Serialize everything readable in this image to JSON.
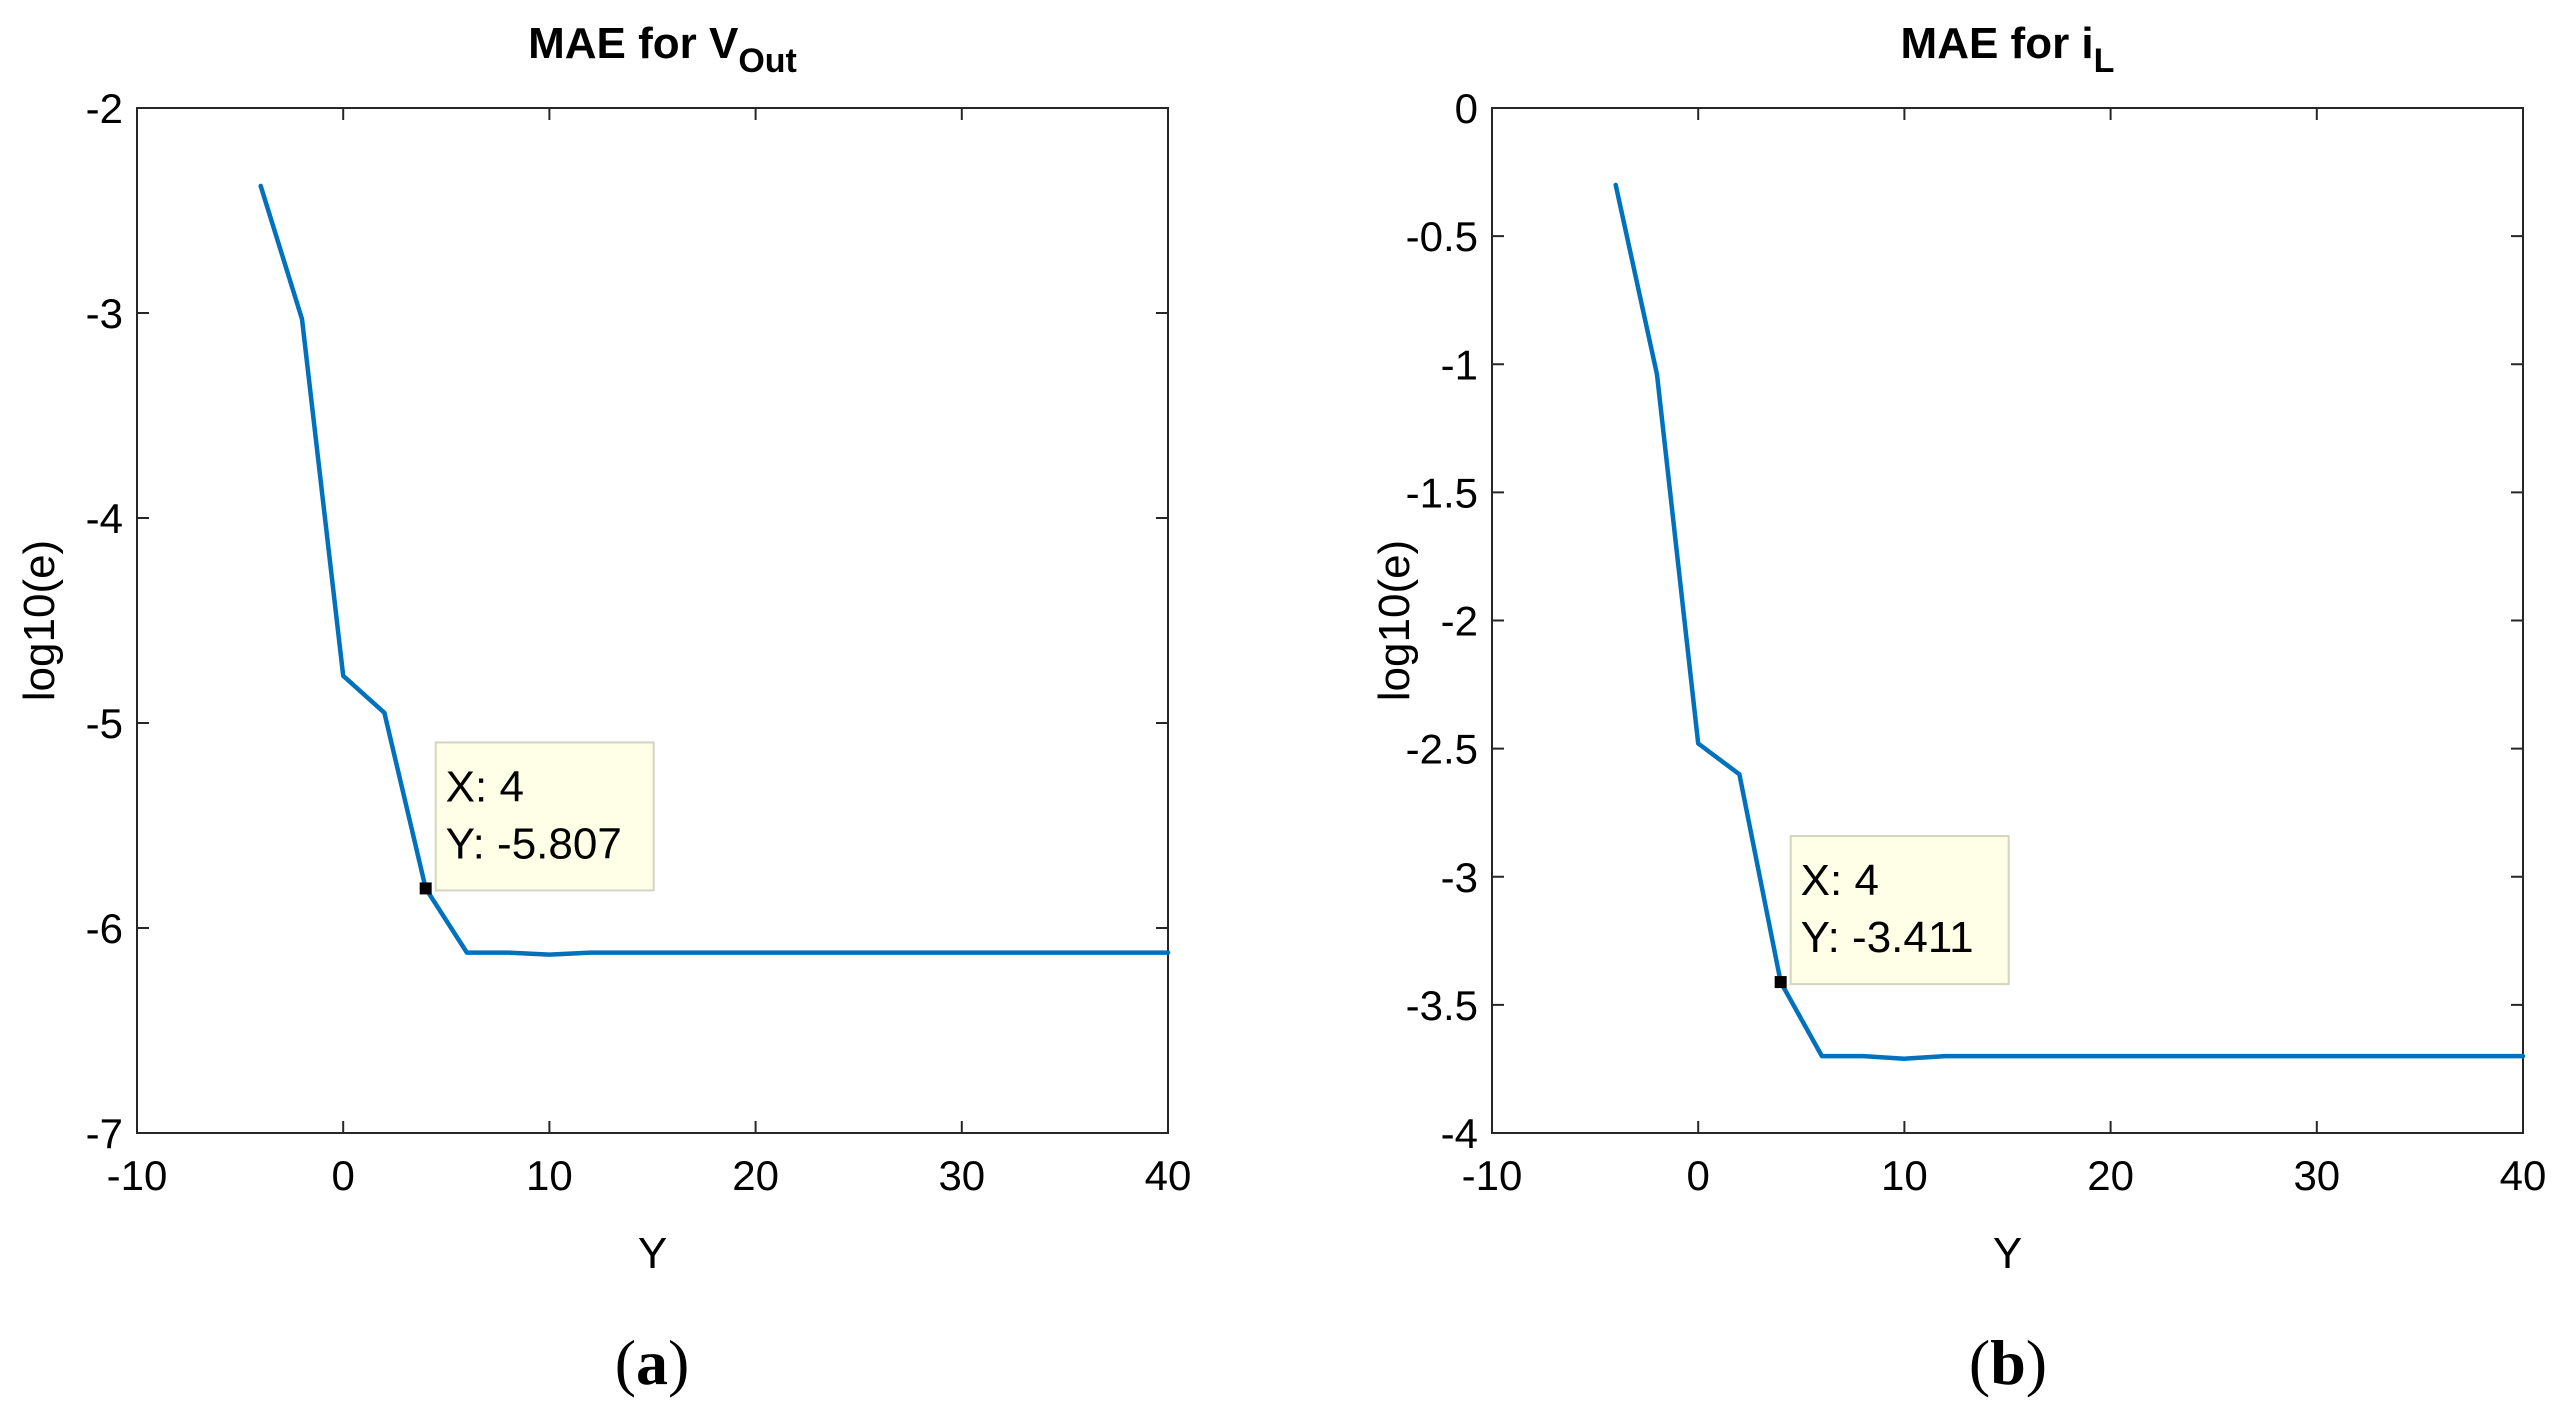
{
  "chart_data": [
    {
      "type": "line",
      "title": "MAE for V",
      "title_subscript": "Out",
      "xlabel": "Y",
      "ylabel": "log10(e)",
      "xlim": [
        -10,
        40
      ],
      "ylim": [
        -7,
        -2
      ],
      "xticks": [
        -10,
        0,
        10,
        20,
        30,
        40
      ],
      "yticks": [
        -7,
        -6,
        -5,
        -4,
        -3,
        -2
      ],
      "xtick_labels": [
        "-10",
        "0",
        "10",
        "20",
        "30",
        "40"
      ],
      "ytick_labels": [
        "-7",
        "-6",
        "-5",
        "-4",
        "-3",
        "-2"
      ],
      "series": [
        {
          "name": "MAE",
          "color": "#0072BD",
          "x": [
            -4,
            -2,
            0,
            2,
            4,
            6,
            8,
            10,
            12,
            40
          ],
          "y": [
            -2.38,
            -3.03,
            -4.77,
            -4.95,
            -5.807,
            -6.12,
            -6.12,
            -6.13,
            -6.12,
            -6.12
          ]
        }
      ],
      "datatip": {
        "x": 4,
        "y": -5.807,
        "line1": "X: 4",
        "line2": "Y: -5.807"
      },
      "panel_label": {
        "open": "(",
        "letter": "a",
        "close": ")"
      }
    },
    {
      "type": "line",
      "title": "MAE for i",
      "title_subscript": "L",
      "xlabel": "Y",
      "ylabel": "log10(e)",
      "xlim": [
        -10,
        40
      ],
      "ylim": [
        -4,
        0
      ],
      "xticks": [
        -10,
        0,
        10,
        20,
        30,
        40
      ],
      "yticks": [
        -4,
        -3.5,
        -3,
        -2.5,
        -2,
        -1.5,
        -1,
        -0.5,
        0
      ],
      "xtick_labels": [
        "-10",
        "0",
        "10",
        "20",
        "30",
        "40"
      ],
      "ytick_labels": [
        "-4",
        "-3.5",
        "-3",
        "-2.5",
        "-2",
        "-1.5",
        "-1",
        "-0.5",
        "0"
      ],
      "series": [
        {
          "name": "MAE",
          "color": "#0072BD",
          "x": [
            -4,
            -2,
            0,
            2,
            4,
            6,
            8,
            10,
            12,
            40
          ],
          "y": [
            -0.3,
            -1.04,
            -2.48,
            -2.6,
            -3.411,
            -3.7,
            -3.7,
            -3.71,
            -3.7,
            -3.7
          ]
        }
      ],
      "datatip": {
        "x": 4,
        "y": -3.411,
        "line1": "X: 4",
        "line2": "Y: -3.411"
      },
      "panel_label": {
        "open": "(",
        "letter": "b",
        "close": ")"
      }
    }
  ]
}
